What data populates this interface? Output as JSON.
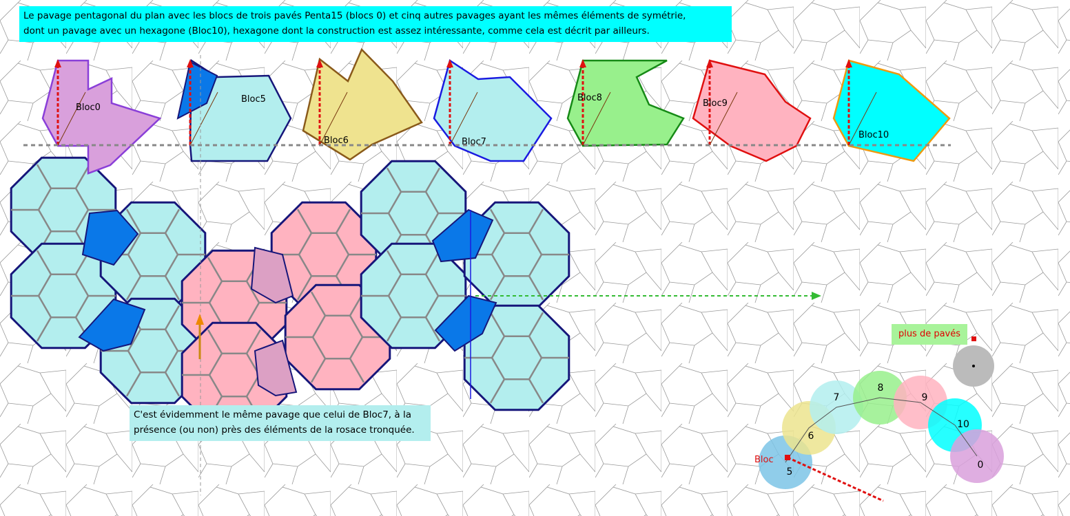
{
  "notes": {
    "top_line1": "Le pavage pentagonal du plan avec les blocs de trois pavés Penta15 (blocs 0) et cinq autres pavages ayant les mêmes éléments de symétrie,",
    "top_line2": "dont un pavage avec un hexagone (Bloc10), hexagone dont la construction est assez intéressante, comme cela est décrit par ailleurs.",
    "bottom_line1": "C'est évidemment le même pavage que celui de Bloc7, à la",
    "bottom_line2": "présence (ou non) près des éléments de la rosace tronquée."
  },
  "blocks": [
    {
      "label": "Bloc0",
      "fill": "#d9a0dc",
      "stroke": "#8a3fd8"
    },
    {
      "label": "Bloc5",
      "fill": "#b3eeee",
      "stroke": "#16167a"
    },
    {
      "label": "Bloc6",
      "fill": "#efe38f",
      "stroke": "#8a5a1a"
    },
    {
      "label": "Bloc7",
      "fill": "#b3eeee",
      "stroke": "#1a1ae0"
    },
    {
      "label": "Bloc8",
      "fill": "#98f08c",
      "stroke": "#168a16"
    },
    {
      "label": "Bloc9",
      "fill": "#ffb3c0",
      "stroke": "#e01010"
    },
    {
      "label": "Bloc10",
      "fill": "#00ffff",
      "stroke": "#ee9a10"
    }
  ],
  "selector": {
    "more_tiles_label": "plus de pavés",
    "bloc_label": "Bloc",
    "circles": [
      {
        "label": "5",
        "color": "#7cc4e6"
      },
      {
        "label": "6",
        "color": "#ece48e"
      },
      {
        "label": "7",
        "color": "#b3eeee"
      },
      {
        "label": "8",
        "color": "#98f08c"
      },
      {
        "label": "9",
        "color": "#ffb3c0"
      },
      {
        "label": "10",
        "color": "#00ffff"
      },
      {
        "label": "0",
        "color": "#d9a0dc"
      }
    ],
    "extra_dot_color": "#bbbbbb"
  },
  "colors": {
    "hex_fill": "#b3eeee",
    "hex_dark": "#0a78e8",
    "pink": "#ffb3c0",
    "pink_dark": "#dca0c4",
    "navy": "#16167a",
    "green_arrow": "#33bb33",
    "dash_line": "#888888"
  }
}
